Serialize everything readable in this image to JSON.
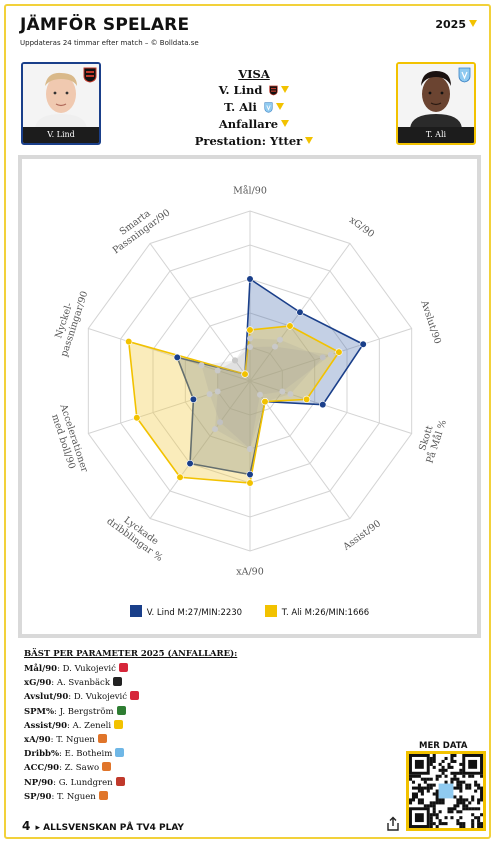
{
  "header": {
    "title": "JÄMFÖR SPELARE",
    "subtitle": "Uppdateras 24 timmar efter match – © Bolldata.se",
    "year": "2025"
  },
  "players": {
    "left": {
      "name": "V. Lind",
      "club_icon": "brommapojkarna-crest-icon",
      "color": "#1a3f8a"
    },
    "right": {
      "name": "T. Ali",
      "club_icon": "malmo-crest-icon",
      "color": "#f2c200"
    }
  },
  "visa": {
    "heading": "VISA",
    "player1": "V. Lind",
    "player2": "T. Ali",
    "position": "Anfallare",
    "performance": "Prestation: Ytter"
  },
  "chart_data": {
    "type": "radar",
    "axes": [
      "Mål/90",
      "xG/90",
      "Avslut/90",
      "Skott På Mål %",
      "Assist/90",
      "xA/90",
      "Lyckade dribblingar %",
      "Accelerationer med boll/90",
      "Nyckel-passningar/90",
      "Smarta Passningar/90"
    ],
    "rmax": 1,
    "series": [
      {
        "name": "V. Lind M:27/MIN:2230",
        "color": "#1a3f8a",
        "values": [
          0.6,
          0.5,
          0.7,
          0.45,
          0.15,
          0.55,
          0.6,
          0.35,
          0.45,
          0.05
        ]
      },
      {
        "name": "T. Ali M:26/MIN:1666",
        "color": "#f2c200",
        "values": [
          0.3,
          0.4,
          0.55,
          0.35,
          0.15,
          0.6,
          0.7,
          0.7,
          0.75,
          0.05
        ]
      }
    ],
    "inner_points": {
      "lind": [
        0.25,
        0.3,
        0.45,
        0.25,
        0.15,
        0.4,
        0.3,
        0.25,
        0.3,
        0.15
      ],
      "ali": [
        0.2,
        0.25,
        0.5,
        0.2,
        0.1,
        0.4,
        0.35,
        0.2,
        0.2,
        0.15
      ]
    },
    "grid_levels": 5,
    "legend": "bottom"
  },
  "best": {
    "heading": "BÄST PER PARAMETER 2025 (ANFALLARE):",
    "rows": [
      {
        "param": "Mål/90",
        "player": "D. Vukojević",
        "crest": "#d6263a"
      },
      {
        "param": "xG/90",
        "player": "A. Svanbäck",
        "crest": "#222222"
      },
      {
        "param": "Avslut/90",
        "player": "D. Vukojević",
        "crest": "#d6263a"
      },
      {
        "param": "SPM%",
        "player": "J. Bergström",
        "crest": "#2e7d32"
      },
      {
        "param": "Assist/90",
        "player": "A. Zeneli",
        "crest": "#f2c200"
      },
      {
        "param": "xA/90",
        "player": "T. Nguen",
        "crest": "#e0752a"
      },
      {
        "param": "Dribb%",
        "player": "E. Botheim",
        "crest": "#6fb7e6"
      },
      {
        "param": "ACC/90",
        "player": "Z. Sawo",
        "crest": "#e0752a"
      },
      {
        "param": "NP/90",
        "player": "G. Lundgren",
        "crest": "#c0392b"
      },
      {
        "param": "SP/90",
        "player": "T. Nguen",
        "crest": "#e0752a"
      }
    ]
  },
  "footer": {
    "brand": "4",
    "text": "ALLSVENSKAN PÅ TV4 PLAY",
    "more_data": "MER DATA"
  }
}
